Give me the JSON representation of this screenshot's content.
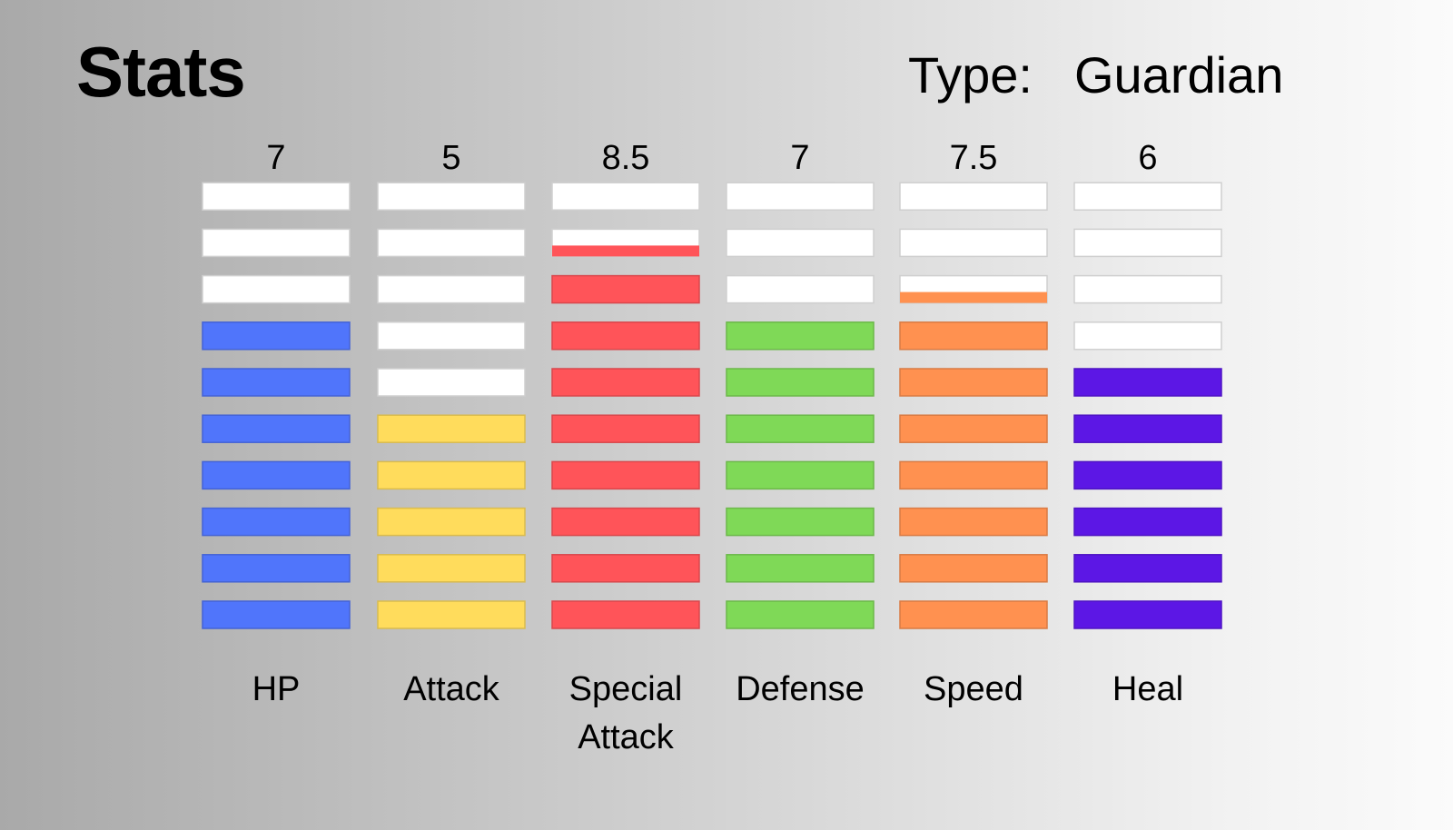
{
  "header": {
    "title": "Stats",
    "type_label": "Type:",
    "type_value": "Guardian"
  },
  "chart_data": {
    "type": "bar",
    "style": "segmented-columns",
    "segments_per_column": 10,
    "ylim": [
      0,
      10
    ],
    "categories": [
      "HP",
      "Attack",
      "Special Attack",
      "Defense",
      "Speed",
      "Heal"
    ],
    "category_lines": [
      [
        "HP"
      ],
      [
        "Attack"
      ],
      [
        "Special",
        "Attack"
      ],
      [
        "Defense"
      ],
      [
        "Speed"
      ],
      [
        "Heal"
      ]
    ],
    "value_labels": [
      "7",
      "5",
      "8.5",
      "7",
      "7.5",
      "6"
    ],
    "values": [
      7,
      5,
      8.5,
      7,
      7.5,
      6
    ],
    "colors": [
      "#5075fb",
      "#ffdc5c",
      "#ff5459",
      "#7fd957",
      "#ff9150",
      "#5c17e5"
    ],
    "empty_color": "#ffffff"
  }
}
